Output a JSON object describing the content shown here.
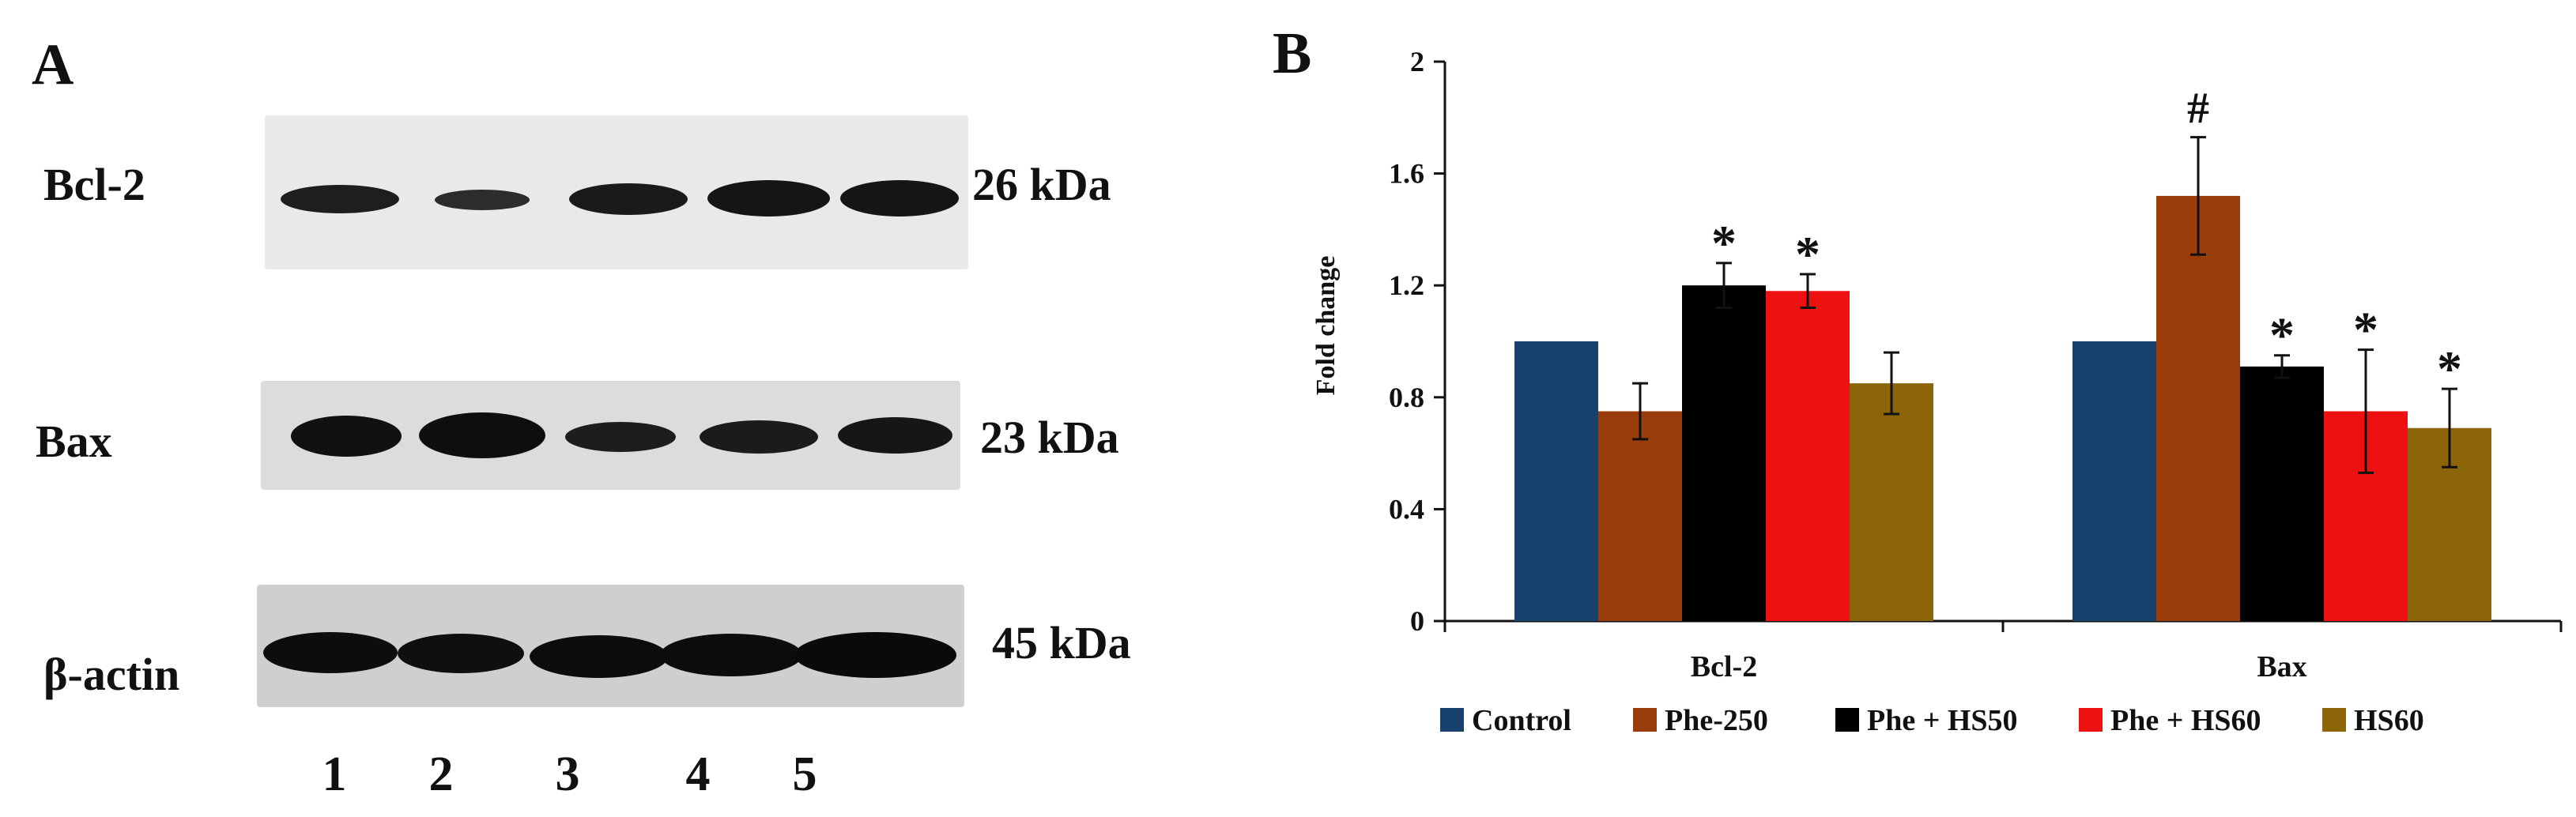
{
  "panel_a": {
    "letter": "A",
    "blots": [
      {
        "name": "bcl2",
        "protein": "Bcl-2",
        "size": "26 kDa"
      },
      {
        "name": "bax",
        "protein": "Bax",
        "size": "23 kDa"
      },
      {
        "name": "actin",
        "protein": "β-actin",
        "size": "45 kDa"
      }
    ],
    "lanes": [
      "1",
      "2",
      "3",
      "4",
      "5"
    ]
  },
  "panel_b": {
    "letter": "B"
  },
  "chart_data": {
    "type": "bar",
    "title": "",
    "xlabel": "",
    "ylabel": "Fold change",
    "ylim": [
      0,
      2
    ],
    "yticks": [
      0,
      0.4,
      0.8,
      1.2,
      1.6,
      2
    ],
    "ytick_labels": [
      "0",
      "0.4",
      "0.8",
      "1.2",
      "1.6",
      "2"
    ],
    "categories": [
      "Bcl-2",
      "Bax"
    ],
    "legend_position": "bottom",
    "series": [
      {
        "name": "Control",
        "color": "#17406d",
        "values": [
          1.0,
          1.0
        ],
        "errors": [
          0.0,
          0.0
        ],
        "marks": [
          "",
          ""
        ]
      },
      {
        "name": "Phe-250",
        "color": "#9a3b0a",
        "values": [
          0.75,
          1.52
        ],
        "errors": [
          0.1,
          0.21
        ],
        "marks": [
          "",
          "#"
        ]
      },
      {
        "name": "Phe + HS50",
        "color": "#000000",
        "values": [
          1.2,
          0.91
        ],
        "errors": [
          0.08,
          0.04
        ],
        "marks": [
          "*",
          "*"
        ]
      },
      {
        "name": "Phe + HS60",
        "color": "#ee1111",
        "values": [
          1.18,
          0.75
        ],
        "errors": [
          0.06,
          0.22
        ],
        "marks": [
          "*",
          "*"
        ]
      },
      {
        "name": "HS60",
        "color": "#8b6508",
        "values": [
          0.85,
          0.69
        ],
        "errors": [
          0.11,
          0.14
        ],
        "marks": [
          "",
          "*"
        ]
      }
    ]
  }
}
